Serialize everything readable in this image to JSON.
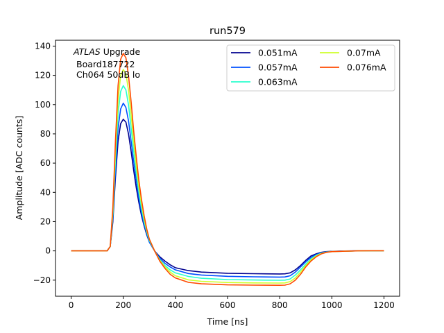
{
  "chart_data": {
    "type": "line",
    "title": "run579",
    "xlabel": "Time [ns]",
    "ylabel": "Amplitude [ADC counts]",
    "xlim": [
      -60,
      1260
    ],
    "ylim": [
      -31,
      144
    ],
    "xticks": [
      0,
      200,
      400,
      600,
      800,
      1000,
      1200
    ],
    "yticks": [
      -20,
      0,
      20,
      40,
      60,
      80,
      100,
      120,
      140
    ],
    "grid": false,
    "legend_position": "top-right",
    "annotation": {
      "line1_italic": "ATLAS",
      "line1_rest": " Upgrade",
      "line2": "Board187722",
      "line3": "Ch064 50dB lo"
    },
    "series": [
      {
        "name": "0.051mA",
        "color": "#00008f",
        "x": [
          0,
          100,
          138,
          150,
          160,
          170,
          180,
          190,
          200,
          210,
          220,
          230,
          240,
          250,
          260,
          270,
          280,
          290,
          300,
          320,
          340,
          360,
          380,
          400,
          450,
          500,
          600,
          700,
          800,
          820,
          840,
          860,
          880,
          900,
          920,
          940,
          960,
          980,
          1000,
          1050,
          1100,
          1150,
          1200
        ],
        "y": [
          0,
          0,
          0,
          3,
          20,
          50,
          75,
          87,
          90,
          88,
          80,
          68,
          55,
          43,
          33,
          24,
          17,
          11,
          6,
          0,
          -4,
          -7,
          -9.5,
          -11.5,
          -13.5,
          -14.5,
          -15.3,
          -15.6,
          -15.8,
          -15.7,
          -15,
          -13,
          -10,
          -6.5,
          -3.5,
          -2,
          -1,
          -0.5,
          -0.3,
          -0.1,
          0,
          0.1,
          0.1
        ]
      },
      {
        "name": "0.057mA",
        "color": "#0050ff",
        "x": [
          0,
          100,
          138,
          150,
          160,
          170,
          180,
          190,
          200,
          210,
          220,
          230,
          240,
          250,
          260,
          270,
          280,
          290,
          300,
          320,
          340,
          360,
          380,
          400,
          450,
          500,
          600,
          700,
          800,
          820,
          840,
          860,
          880,
          900,
          920,
          940,
          960,
          980,
          1000,
          1050,
          1100,
          1150,
          1200
        ],
        "y": [
          0,
          0,
          0,
          3,
          22,
          55,
          84,
          97,
          101,
          98,
          89,
          75,
          61,
          48,
          36,
          26,
          18,
          12,
          6,
          0,
          -5,
          -8.5,
          -11,
          -13,
          -15.5,
          -16.5,
          -17.4,
          -17.7,
          -17.9,
          -17.8,
          -17,
          -14.5,
          -11,
          -7.5,
          -4.5,
          -2.5,
          -1.3,
          -0.7,
          -0.4,
          -0.1,
          0,
          0.1,
          0.1
        ]
      },
      {
        "name": "0.063mA",
        "color": "#29ffce",
        "x": [
          0,
          100,
          138,
          150,
          160,
          170,
          180,
          190,
          200,
          210,
          220,
          230,
          240,
          250,
          260,
          270,
          280,
          290,
          300,
          320,
          340,
          360,
          380,
          400,
          450,
          500,
          600,
          700,
          800,
          820,
          840,
          860,
          880,
          900,
          920,
          940,
          960,
          980,
          1000,
          1050,
          1100,
          1150,
          1200
        ],
        "y": [
          0,
          0,
          0,
          3,
          25,
          62,
          94,
          109,
          113,
          110,
          100,
          84,
          68,
          53,
          40,
          29,
          20,
          13,
          7,
          0,
          -6,
          -10,
          -13,
          -15,
          -17.5,
          -18.7,
          -19.6,
          -19.9,
          -20.1,
          -20,
          -19.2,
          -16.5,
          -13,
          -9,
          -5.5,
          -3,
          -1.6,
          -0.8,
          -0.5,
          -0.2,
          0,
          0.1,
          0.1
        ]
      },
      {
        "name": "0.07mA",
        "color": "#ceff29",
        "x": [
          0,
          100,
          138,
          150,
          160,
          170,
          180,
          190,
          200,
          210,
          220,
          230,
          240,
          250,
          260,
          270,
          280,
          290,
          300,
          320,
          340,
          360,
          380,
          400,
          450,
          500,
          600,
          700,
          800,
          820,
          840,
          860,
          880,
          900,
          920,
          940,
          960,
          980,
          1000,
          1050,
          1100,
          1150,
          1200
        ],
        "y": [
          0,
          0,
          0,
          3,
          27,
          68,
          103,
          120,
          124,
          121,
          110,
          93,
          75,
          58,
          44,
          32,
          22,
          14,
          8,
          0,
          -6.5,
          -11,
          -14.5,
          -17,
          -19.8,
          -20.8,
          -21.6,
          -21.9,
          -22,
          -21.9,
          -21,
          -18.5,
          -14.5,
          -10,
          -6.2,
          -3.5,
          -1.8,
          -0.9,
          -0.5,
          -0.2,
          0,
          0.1,
          0.1
        ]
      },
      {
        "name": "0.076mA",
        "color": "#ff4a00",
        "x": [
          0,
          100,
          138,
          150,
          160,
          170,
          180,
          190,
          200,
          210,
          220,
          230,
          240,
          250,
          260,
          270,
          280,
          290,
          300,
          320,
          340,
          360,
          380,
          400,
          450,
          500,
          600,
          700,
          800,
          820,
          840,
          860,
          880,
          900,
          920,
          940,
          960,
          980,
          1000,
          1050,
          1100,
          1150,
          1200
        ],
        "y": [
          0,
          0,
          0,
          3,
          30,
          75,
          113,
          131,
          135,
          132,
          120,
          102,
          82,
          64,
          48,
          35,
          24,
          15,
          8,
          0,
          -7,
          -12,
          -16,
          -18.5,
          -21.5,
          -22.5,
          -23.2,
          -23.4,
          -23.5,
          -23.4,
          -22.5,
          -20,
          -16,
          -11,
          -7,
          -4,
          -2,
          -1,
          -0.5,
          -0.2,
          0,
          0.1,
          0.1
        ]
      }
    ]
  }
}
